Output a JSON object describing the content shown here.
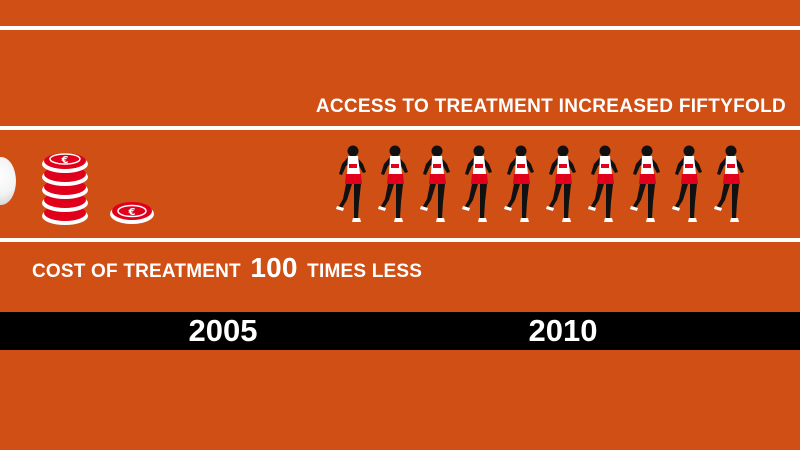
{
  "headline": "ACCESS TO TREATMENT INCREASED FIFTYFOLD",
  "cost": {
    "prefix": "COST OF TREATMENT",
    "number": "100",
    "suffix": "TIMES LESS"
  },
  "timeline": {
    "year_start": "2005",
    "year_end": "2010"
  },
  "icons": {
    "coin": "euro-coin-icon",
    "runner": "runner-icon",
    "ball": "ball-icon"
  },
  "colors": {
    "background": "#cf4f14",
    "lane": "#ffffff",
    "timeline_bar": "#000000",
    "coin_red": "#e0001b",
    "runner_skin": "#111111",
    "shorts": "#e0001b"
  },
  "counts": {
    "runners_2010": 10,
    "coins_stack_2005": 5,
    "coins_single_2010": 1
  }
}
